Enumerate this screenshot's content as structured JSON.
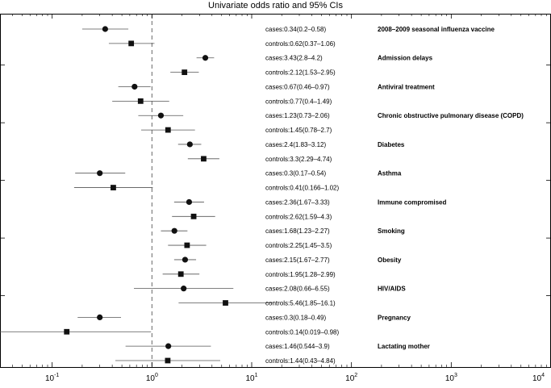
{
  "chart_data": {
    "type": "scatter",
    "subtype": "forest-plot",
    "title": "Univariate odds ratio and 95% CIs",
    "xscale": "log",
    "xlim": [
      0.03,
      10000
    ],
    "reference_line": 1,
    "xticks": [
      {
        "value": 0.1,
        "base": "10",
        "exp": "-1"
      },
      {
        "value": 1,
        "base": "10",
        "exp": "0"
      },
      {
        "value": 10,
        "base": "10",
        "exp": "1"
      },
      {
        "value": 100,
        "base": "10",
        "exp": "2"
      },
      {
        "value": 1000,
        "base": "10",
        "exp": "3"
      },
      {
        "value": 10000,
        "base": "10",
        "exp": "4"
      }
    ],
    "legend": [
      {
        "marker": "circle",
        "group": "cases"
      },
      {
        "marker": "square",
        "group": "controls"
      }
    ],
    "categories": [
      {
        "name": "2008–2009 seasonal influenza vaccine",
        "cases": {
          "or": 0.34,
          "lo": 0.2,
          "hi": 0.58,
          "label": "cases:0.34(0.2–0.58)"
        },
        "controls": {
          "or": 0.62,
          "lo": 0.37,
          "hi": 1.06,
          "label": "controls:0.62(0.37–1.06)"
        }
      },
      {
        "name": "Admission delays",
        "cases": {
          "or": 3.43,
          "lo": 2.8,
          "hi": 4.2,
          "label": "cases:3.43(2.8–4.2)"
        },
        "controls": {
          "or": 2.12,
          "lo": 1.53,
          "hi": 2.95,
          "label": "controls:2.12(1.53–2.95)"
        }
      },
      {
        "name": "Antiviral treatment",
        "cases": {
          "or": 0.67,
          "lo": 0.46,
          "hi": 0.97,
          "label": "cases:0.67(0.46–0.97)"
        },
        "controls": {
          "or": 0.77,
          "lo": 0.4,
          "hi": 1.49,
          "label": "controls:0.77(0.4–1.49)"
        }
      },
      {
        "name": "Chronic obstructive pulmonary disease (COPD)",
        "cases": {
          "or": 1.23,
          "lo": 0.73,
          "hi": 2.06,
          "label": "cases:1.23(0.73–2.06)"
        },
        "controls": {
          "or": 1.45,
          "lo": 0.78,
          "hi": 2.7,
          "label": "controls:1.45(0.78–2.7)"
        }
      },
      {
        "name": "Diabetes",
        "cases": {
          "or": 2.4,
          "lo": 1.83,
          "hi": 3.12,
          "label": "cases:2.4(1.83–3.12)"
        },
        "controls": {
          "or": 3.3,
          "lo": 2.29,
          "hi": 4.74,
          "label": "controls:3.3(2.29–4.74)"
        }
      },
      {
        "name": "Asthma",
        "cases": {
          "or": 0.3,
          "lo": 0.17,
          "hi": 0.54,
          "label": "cases:0.3(0.17–0.54)"
        },
        "controls": {
          "or": 0.41,
          "lo": 0.166,
          "hi": 1.02,
          "label": "controls:0.41(0.166–1.02)"
        }
      },
      {
        "name": "Immune compromised",
        "cases": {
          "or": 2.36,
          "lo": 1.67,
          "hi": 3.33,
          "label": "cases:2.36(1.67–3.33)"
        },
        "controls": {
          "or": 2.62,
          "lo": 1.59,
          "hi": 4.3,
          "label": "controls:2.62(1.59–4.3)"
        }
      },
      {
        "name": "Smoking",
        "cases": {
          "or": 1.68,
          "lo": 1.23,
          "hi": 2.27,
          "label": "cases:1.68(1.23–2.27)"
        },
        "controls": {
          "or": 2.25,
          "lo": 1.45,
          "hi": 3.5,
          "label": "controls:2.25(1.45–3.5)"
        }
      },
      {
        "name": "Obesity",
        "cases": {
          "or": 2.15,
          "lo": 1.67,
          "hi": 2.77,
          "label": "cases:2.15(1.67–2.77)"
        },
        "controls": {
          "or": 1.95,
          "lo": 1.28,
          "hi": 2.99,
          "label": "controls:1.95(1.28–2.99)"
        }
      },
      {
        "name": "HIV/AIDS",
        "cases": {
          "or": 2.08,
          "lo": 0.66,
          "hi": 6.55,
          "label": "cases:2.08(0.66–6.55)"
        },
        "controls": {
          "or": 5.46,
          "lo": 1.85,
          "hi": 16.1,
          "label": "controls:5.46(1.85–16.1)"
        }
      },
      {
        "name": "Pregnancy",
        "cases": {
          "or": 0.3,
          "lo": 0.18,
          "hi": 0.49,
          "label": "cases:0.3(0.18–0.49)"
        },
        "controls": {
          "or": 0.14,
          "lo": 0.019,
          "hi": 0.98,
          "label": "controls:0.14(0.019–0.98)"
        }
      },
      {
        "name": "Lactating mother",
        "cases": {
          "or": 1.46,
          "lo": 0.544,
          "hi": 3.9,
          "label": "cases:1.46(0.544–3.9)"
        },
        "controls": {
          "or": 1.44,
          "lo": 0.43,
          "hi": 4.84,
          "label": "controls:1.44(0.43–4.84)"
        }
      }
    ]
  }
}
